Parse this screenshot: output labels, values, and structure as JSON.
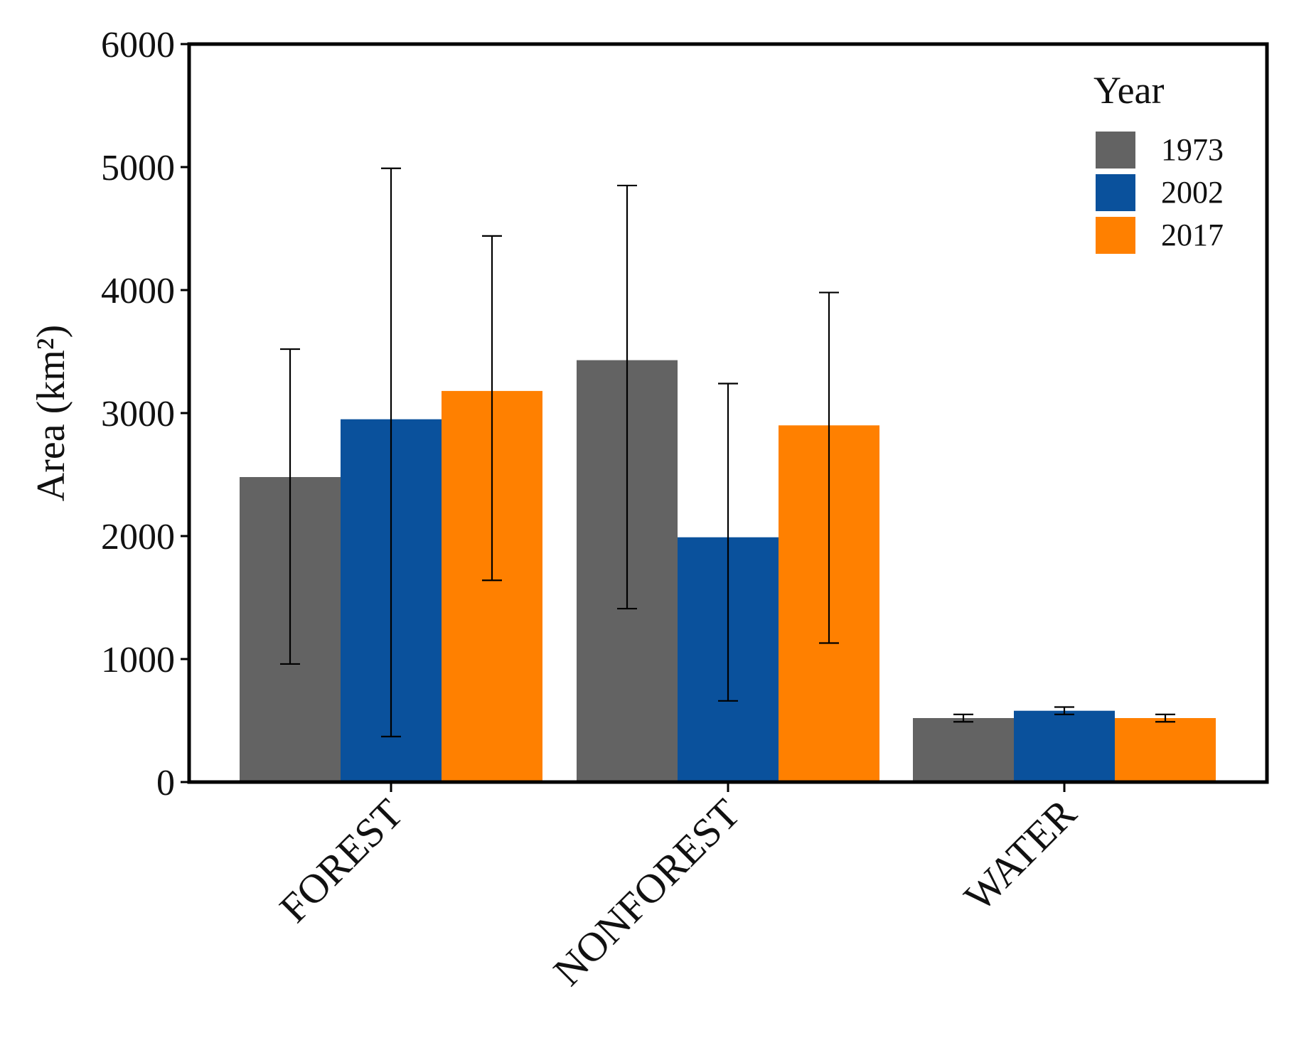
{
  "chart_data": {
    "type": "bar",
    "title": "",
    "xlabel": "",
    "ylabel": "Area (km²)",
    "ylim": [
      0,
      6000
    ],
    "yticks": [
      0,
      1000,
      2000,
      3000,
      4000,
      5000,
      6000
    ],
    "grid": false,
    "legend_position": "top-right",
    "legend_title": "Year",
    "categories": [
      "FOREST",
      "NONFOREST",
      "WATER"
    ],
    "series": [
      {
        "name": "1973",
        "color": "#636363",
        "values": [
          2480,
          3430,
          520
        ],
        "err_low": [
          960,
          1410,
          490
        ],
        "err_high": [
          3520,
          4850,
          550
        ]
      },
      {
        "name": "2002",
        "color": "#0a519c",
        "values": [
          2950,
          1990,
          580
        ],
        "err_low": [
          370,
          660,
          550
        ],
        "err_high": [
          4990,
          3240,
          610
        ]
      },
      {
        "name": "2017",
        "color": "#ff8000",
        "values": [
          3180,
          2900,
          520
        ],
        "err_low": [
          1640,
          1130,
          490
        ],
        "err_high": [
          4440,
          3980,
          550
        ]
      }
    ]
  }
}
